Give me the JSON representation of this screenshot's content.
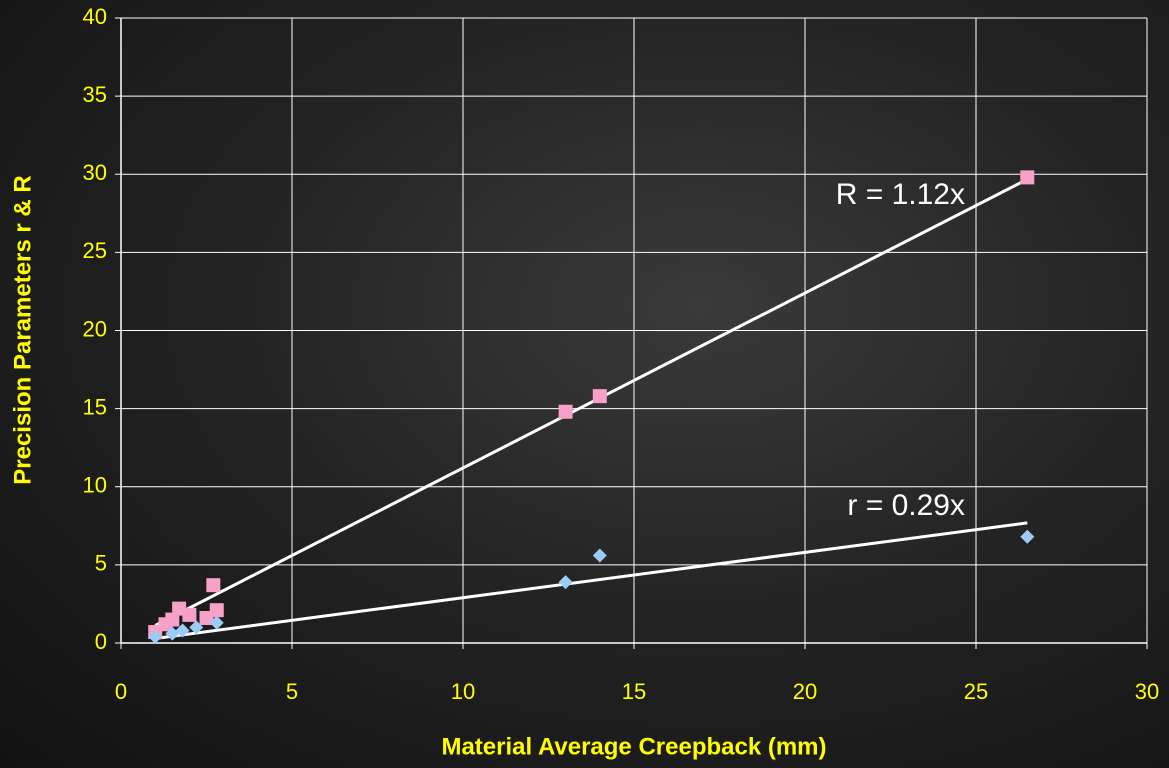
{
  "chart_data": {
    "type": "scatter",
    "xlabel": "Material Average Creepback (mm)",
    "ylabel": "Precision Parameters r & R",
    "xlim": [
      0,
      30
    ],
    "xticks": [
      0,
      5,
      10,
      15,
      20,
      25,
      30
    ],
    "ylim": [
      0,
      40
    ],
    "yticks": [
      0,
      5,
      10,
      15,
      20,
      25,
      30,
      35,
      40
    ],
    "grid": true,
    "series": [
      {
        "color": "#f7a1c9",
        "marker": "square",
        "x": [
          1.0,
          1.3,
          1.5,
          1.7,
          2.0,
          2.5,
          2.7,
          2.8,
          13.0,
          14.0,
          26.5
        ],
        "values": [
          0.7,
          1.2,
          1.5,
          2.2,
          1.8,
          1.6,
          3.7,
          2.1,
          14.8,
          15.8,
          29.8
        ]
      },
      {
        "color": "#9ccbf5",
        "marker": "diamond",
        "x": [
          1.0,
          1.5,
          1.8,
          2.2,
          2.8,
          13.0,
          14.0,
          26.5
        ],
        "values": [
          0.4,
          0.6,
          0.8,
          1.0,
          1.3,
          3.9,
          5.6,
          6.8
        ]
      }
    ],
    "trendlines": [
      {
        "label": "R = 1.12x",
        "slope": 1.12,
        "series": 0
      },
      {
        "label": "r = 0.29x",
        "slope": 0.29,
        "series": 1
      }
    ]
  }
}
